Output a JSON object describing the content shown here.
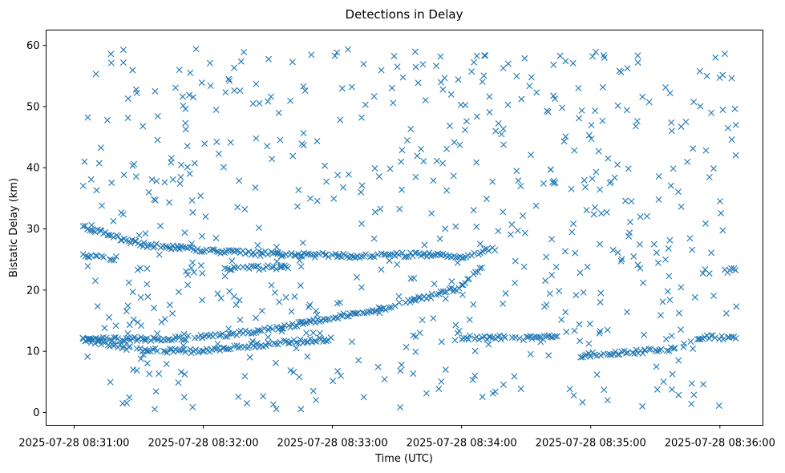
{
  "chart_data": {
    "type": "scatter",
    "title": "Detections in Delay",
    "xlabel": "Time (UTC)",
    "ylabel": "Bistatic Delay (km)",
    "xlim": [
      "2025-07-28 08:30:47",
      "2025-07-28 08:36:20"
    ],
    "ylim": [
      -2.1,
      62.5
    ],
    "x_ticks": [
      "2025-07-28 08:31:00",
      "2025-07-28 08:32:00",
      "2025-07-28 08:33:00",
      "2025-07-28 08:34:00",
      "2025-07-28 08:35:00",
      "2025-07-28 08:36:00"
    ],
    "y_ticks": [
      "0",
      "10",
      "20",
      "30",
      "40",
      "50",
      "60"
    ],
    "grid": false,
    "legend": "none",
    "marker": "x",
    "marker_color": "#1f77b4",
    "series": [
      {
        "tracks": [
          {
            "x": [
              "2025-07-28 08:31:04",
              "2025-07-28 08:31:30",
              "2025-07-28 08:32:00",
              "2025-07-28 08:32:40",
              "2025-07-28 08:33:10",
              "2025-07-28 08:33:40",
              "2025-07-28 08:34:00",
              "2025-07-28 08:34:16"
            ],
            "y": [
              30.5,
              27.5,
              26.5,
              25.8,
              25.6,
              25.8,
              25.5,
              26.8
            ]
          },
          {
            "x": [
              "2025-07-28 08:31:04",
              "2025-07-28 08:31:30",
              "2025-07-28 08:32:00",
              "2025-07-28 08:32:30",
              "2025-07-28 08:33:00",
              "2025-07-28 08:33:30",
              "2025-07-28 08:34:00",
              "2025-07-28 08:34:10"
            ],
            "y": [
              12.0,
              12.0,
              12.3,
              13.5,
              15.5,
              17.5,
              20.5,
              24.0
            ]
          },
          {
            "x": [
              "2025-07-28 08:31:04",
              "2025-07-28 08:31:30",
              "2025-07-28 08:32:00",
              "2025-07-28 08:32:30",
              "2025-07-28 08:33:00"
            ],
            "y": [
              12.0,
              10.2,
              10.0,
              11.2,
              12.0
            ]
          },
          {
            "x": [
              "2025-07-28 08:31:04",
              "2025-07-28 08:31:20"
            ],
            "y": [
              25.5,
              25.2
            ]
          },
          {
            "x": [
              "2025-07-28 08:32:10",
              "2025-07-28 08:32:40"
            ],
            "y": [
              23.5,
              23.8
            ]
          },
          {
            "x": [
              "2025-07-28 08:34:00",
              "2025-07-28 08:34:45"
            ],
            "y": [
              12.2,
              12.2
            ]
          },
          {
            "x": [
              "2025-07-28 08:34:55",
              "2025-07-28 08:35:20",
              "2025-07-28 08:35:40"
            ],
            "y": [
              9.3,
              9.9,
              10.4
            ]
          },
          {
            "x": [
              "2025-07-28 08:35:50",
              "2025-07-28 08:36:08"
            ],
            "y": [
              12.3,
              12.3
            ]
          },
          {
            "x": [
              "2025-07-28 08:36:02",
              "2025-07-28 08:36:08"
            ],
            "y": [
              23.0,
              23.5
            ]
          }
        ]
      }
    ]
  }
}
